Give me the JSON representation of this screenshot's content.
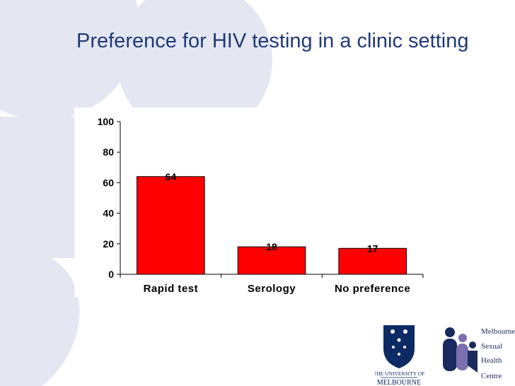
{
  "slide": {
    "title": "Preference for HIV testing in a clinic setting"
  },
  "chart_data": {
    "type": "bar",
    "title": "",
    "xlabel": "",
    "ylabel": "",
    "categories": [
      "Rapid test",
      "Serology",
      "No preference"
    ],
    "values": [
      64,
      18,
      17
    ],
    "data_labels": [
      "64",
      "18",
      "17"
    ],
    "ylim": [
      0,
      100
    ],
    "yticks": [
      0,
      20,
      40,
      60,
      80,
      100
    ],
    "bar_color": "#ff0000",
    "grid": false,
    "legend": "none"
  },
  "logos": {
    "university_line1": "THE UNIVERSITY OF",
    "university_line2": "MELBOURNE",
    "clinic_lines": [
      "Melbourne",
      "Sexual",
      "Health",
      "Centre"
    ]
  },
  "colors": {
    "title": "#1f3a78",
    "background_shapes": "#e4e7f1",
    "university_navy": "#0c2b64",
    "clinic_navy": "#1b2a5e",
    "clinic_purple": "#7b6fb0"
  }
}
